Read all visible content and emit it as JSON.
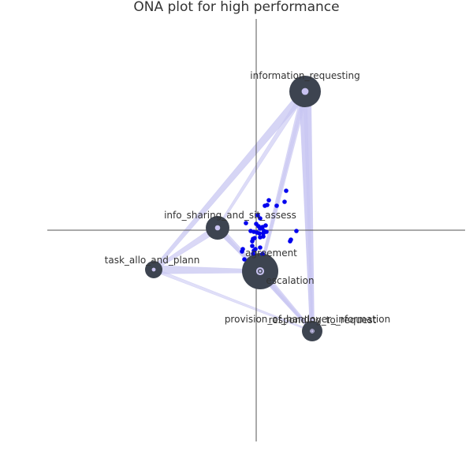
{
  "chart_data": {
    "type": "scatter",
    "title": "ONA plot for high performance",
    "xlabel": "",
    "ylabel": "",
    "xlim": [
      -2.65,
      2.65
    ],
    "ylim": [
      -2.68,
      2.68
    ],
    "grid": false,
    "zero_lines": true,
    "colors": {
      "node_fill": "#3d4450",
      "node_center": "#c8c2f0",
      "edge": "#c8c6f2",
      "points": "#0000ee",
      "axis": "#555555"
    },
    "nodes": [
      {
        "label": "information_requesting",
        "x": 0.62,
        "y": 1.76,
        "size": 20
      },
      {
        "label": "info_sharing_and_sit_assess",
        "x": -0.49,
        "y": 0.03,
        "size": 15
      },
      {
        "label": "task_allo_and_plann",
        "x": -1.3,
        "y": -0.5,
        "size": 11
      },
      {
        "label": "agreement",
        "x": 0.05,
        "y": -0.52,
        "size": 23
      },
      {
        "label": "escalation",
        "x": 0.05,
        "y": -0.52,
        "size": 3
      },
      {
        "label": "responding_to_request",
        "x": 0.71,
        "y": -1.28,
        "size": 13
      },
      {
        "label": "provision_of_handover_information",
        "x": 0.71,
        "y": -1.28,
        "size": 2
      }
    ],
    "edges": [
      {
        "source": 0,
        "target": 2,
        "weight": 4
      },
      {
        "source": 0,
        "target": 1,
        "weight": 2
      },
      {
        "source": 0,
        "target": 3,
        "weight": 3
      },
      {
        "source": 0,
        "target": 5,
        "weight": 6
      },
      {
        "source": 0,
        "target": 4,
        "weight": 1
      },
      {
        "source": 1,
        "target": 2,
        "weight": 3
      },
      {
        "source": 1,
        "target": 3,
        "weight": 3
      },
      {
        "source": 1,
        "target": 5,
        "weight": 1
      },
      {
        "source": 2,
        "target": 3,
        "weight": 4
      },
      {
        "source": 2,
        "target": 5,
        "weight": 1
      },
      {
        "source": 3,
        "target": 5,
        "weight": 3
      },
      {
        "source": 4,
        "target": 6,
        "weight": 1
      },
      {
        "source": 0,
        "target": 6,
        "weight": 1
      }
    ],
    "points": [
      {
        "x": 0.38,
        "y": 0.5
      },
      {
        "x": 0.16,
        "y": 0.38
      },
      {
        "x": 0.36,
        "y": 0.36
      },
      {
        "x": 0.11,
        "y": 0.31
      },
      {
        "x": 0.14,
        "y": 0.32
      },
      {
        "x": 0.26,
        "y": 0.31
      },
      {
        "x": 0.02,
        "y": 0.19
      },
      {
        "x": 0.05,
        "y": 0.15
      },
      {
        "x": -0.13,
        "y": 0.09
      },
      {
        "x": 0.0,
        "y": 0.08
      },
      {
        "x": 0.03,
        "y": 0.05
      },
      {
        "x": 0.05,
        "y": 0.02
      },
      {
        "x": 0.08,
        "y": 0.04
      },
      {
        "x": 0.12,
        "y": 0.06
      },
      {
        "x": 0.1,
        "y": -0.01
      },
      {
        "x": -0.07,
        "y": -0.01
      },
      {
        "x": -0.03,
        "y": -0.02
      },
      {
        "x": 0.01,
        "y": -0.03
      },
      {
        "x": 0.04,
        "y": -0.04
      },
      {
        "x": 0.09,
        "y": -0.04
      },
      {
        "x": 0.13,
        "y": -0.02
      },
      {
        "x": 0.09,
        "y": -0.08
      },
      {
        "x": 0.05,
        "y": -0.09
      },
      {
        "x": -0.02,
        "y": -0.1
      },
      {
        "x": -0.04,
        "y": -0.11
      },
      {
        "x": -0.05,
        "y": -0.14
      },
      {
        "x": 0.51,
        "y": -0.01
      },
      {
        "x": 0.44,
        "y": -0.12
      },
      {
        "x": 0.43,
        "y": -0.14
      },
      {
        "x": -0.05,
        "y": -0.2
      },
      {
        "x": -0.03,
        "y": -0.26
      },
      {
        "x": -0.17,
        "y": -0.24
      },
      {
        "x": 0.05,
        "y": -0.22
      },
      {
        "x": -0.01,
        "y": -0.24
      },
      {
        "x": -0.04,
        "y": -0.3
      },
      {
        "x": 0.08,
        "y": -0.3
      },
      {
        "x": -0.18,
        "y": -0.27
      },
      {
        "x": -0.15,
        "y": -0.37
      }
    ],
    "mean_marker": {
      "x": 0.08,
      "y": -0.04,
      "ci_x": 0.04,
      "ci_y": 0.05
    }
  }
}
